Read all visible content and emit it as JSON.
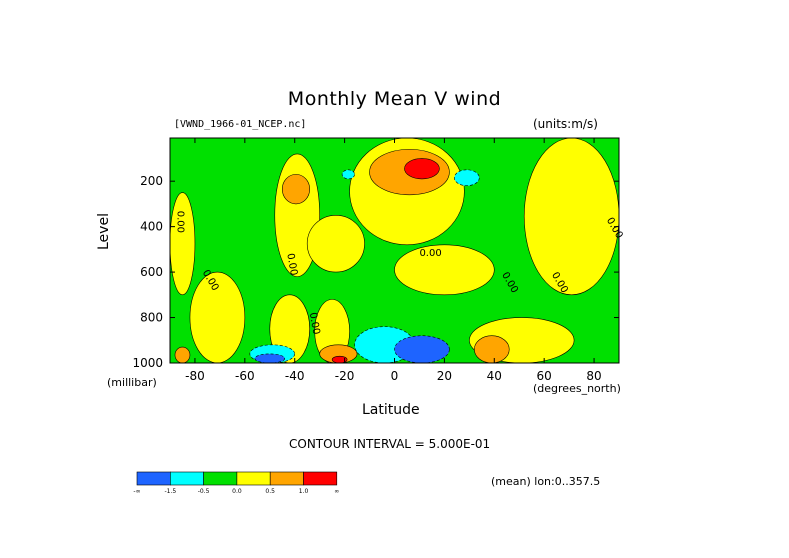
{
  "chart_data": {
    "type": "heatmap",
    "title": "Monthly Mean V wind",
    "dataset": "[VWND_1966-01_NCEP.nc]",
    "units": "(units:m/s)",
    "xlabel": "Latitude",
    "x_unit": "(degrees_north)",
    "ylabel": "Level",
    "y_unit": "(millibar)",
    "xlim": [
      -90,
      90
    ],
    "ylim": [
      1000,
      10
    ],
    "x_ticks": [
      -80,
      -60,
      -40,
      -20,
      0,
      20,
      40,
      60,
      80
    ],
    "x_tick_labels": [
      "-80",
      "-60",
      "-40",
      "-20",
      "0",
      "20",
      "40",
      "60",
      "80"
    ],
    "y_ticks": [
      200,
      400,
      600,
      800,
      1000
    ],
    "y_tick_labels": [
      "200",
      "400",
      "600",
      "800",
      "1000"
    ],
    "contour_interval": "CONTOUR INTERVAL = 5.000E-01",
    "contour_label": "0.00",
    "colorbar": {
      "labels": [
        "-∞",
        "-1.5",
        "-0.5",
        "0.0",
        "0.5",
        "1.0",
        "∞"
      ],
      "colors": [
        "#1e64ff",
        "#00ffff",
        "#00e000",
        "#ffff00",
        "#ffa500",
        "#ff0000"
      ]
    },
    "regions": [
      {
        "level": "green",
        "x": [
          -90,
          90
        ],
        "y": [
          1000,
          10
        ]
      },
      {
        "level": "yellow",
        "x": [
          -90,
          -80
        ],
        "y": [
          700,
          250
        ]
      },
      {
        "level": "yellow",
        "x": [
          -82,
          -60
        ],
        "y": [
          1000,
          600
        ]
      },
      {
        "level": "yellow",
        "x": [
          -50,
          -34
        ],
        "y": [
          1000,
          700
        ]
      },
      {
        "level": "yellow",
        "x": [
          -48,
          -30
        ],
        "y": [
          620,
          80
        ]
      },
      {
        "level": "yellow",
        "x": [
          -32,
          -18
        ],
        "y": [
          1000,
          720
        ]
      },
      {
        "level": "yellow",
        "x": [
          -18,
          28
        ],
        "y": [
          480,
          10
        ]
      },
      {
        "level": "yellow",
        "x": [
          0,
          40
        ],
        "y": [
          700,
          480
        ]
      },
      {
        "level": "yellow",
        "x": [
          30,
          72
        ],
        "y": [
          1000,
          800
        ]
      },
      {
        "level": "yellow",
        "x": [
          52,
          90
        ],
        "y": [
          700,
          10
        ]
      },
      {
        "level": "yellow",
        "x": [
          -35,
          -12
        ],
        "y": [
          600,
          350
        ]
      },
      {
        "level": "orange",
        "x": [
          -45,
          -34
        ],
        "y": [
          300,
          170
        ]
      },
      {
        "level": "orange",
        "x": [
          -10,
          22
        ],
        "y": [
          260,
          60
        ]
      },
      {
        "level": "orange",
        "x": [
          -30,
          -15
        ],
        "y": [
          1000,
          920
        ]
      },
      {
        "level": "orange",
        "x": [
          32,
          46
        ],
        "y": [
          1000,
          880
        ]
      },
      {
        "level": "orange",
        "x": [
          -88,
          -82
        ],
        "y": [
          1000,
          930
        ]
      },
      {
        "level": "red",
        "x": [
          4,
          18
        ],
        "y": [
          190,
          100
        ]
      },
      {
        "level": "red",
        "x": [
          -25,
          -19
        ],
        "y": [
          1000,
          970
        ]
      },
      {
        "level": "cyan",
        "x": [
          -16,
          8
        ],
        "y": [
          1000,
          840
        ]
      },
      {
        "level": "cyan",
        "x": [
          -58,
          -40
        ],
        "y": [
          1000,
          920
        ]
      },
      {
        "level": "cyan",
        "x": [
          24,
          34
        ],
        "y": [
          220,
          150
        ]
      },
      {
        "level": "cyan",
        "x": [
          -21,
          -16
        ],
        "y": [
          190,
          150
        ]
      },
      {
        "level": "blue",
        "x": [
          0,
          22
        ],
        "y": [
          1000,
          880
        ]
      },
      {
        "level": "blue",
        "x": [
          -56,
          -44
        ],
        "y": [
          1000,
          960
        ]
      }
    ]
  },
  "footer": {
    "mean_note": "(mean) lon:0..357.5"
  }
}
